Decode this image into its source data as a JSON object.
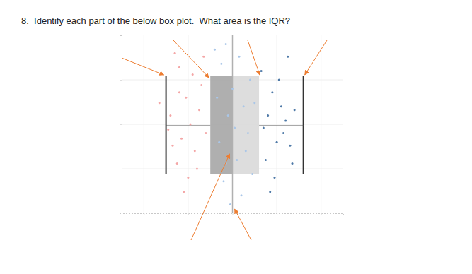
{
  "chart_data": {
    "type": "box",
    "title": "8.  Identify each part of the below box plot.  What area is the IQR?",
    "orientation": "horizontal",
    "tick_labels": false,
    "grid": true,
    "xlim": [
      0,
      100
    ],
    "ylim": [
      0,
      100
    ],
    "xticks": [
      10,
      30,
      50,
      70,
      90
    ],
    "yticks": [
      25,
      50,
      75
    ],
    "box": {
      "min": 20,
      "q1": 40,
      "median": 50,
      "q3": 62,
      "max": 82
    },
    "colors": [
      "#a6a6a6",
      "#d9d9d9"
    ],
    "series": [
      {
        "type": "scatter",
        "color": "#f4a6a6",
        "marker": "circle",
        "x": [
          17,
          24,
          26,
          22,
          29,
          31,
          27,
          33,
          25,
          36,
          30,
          23,
          35,
          38,
          28,
          34,
          21,
          32,
          37,
          26
        ],
        "y": [
          62,
          90,
          82,
          55,
          65,
          50,
          42,
          35,
          28,
          72,
          20,
          38,
          58,
          45,
          12,
          25,
          47,
          78,
          88,
          68
        ]
      },
      {
        "type": "scatter",
        "color": "#a9c6e8",
        "marker": "circle",
        "x": [
          42,
          45,
          47,
          50,
          53,
          55,
          48,
          44,
          52,
          57,
          59,
          46,
          54,
          58,
          43,
          51,
          56,
          49,
          60,
          47
        ],
        "y": [
          92,
          84,
          95,
          70,
          88,
          60,
          55,
          40,
          30,
          45,
          22,
          18,
          10,
          75,
          65,
          48,
          35,
          5,
          62,
          28
        ]
      },
      {
        "type": "scatter",
        "color": "#4e79a7",
        "marker": "circle",
        "x": [
          63,
          66,
          68,
          70,
          72,
          65,
          74,
          71,
          76,
          69,
          78,
          73,
          75,
          67,
          77,
          64
        ],
        "y": [
          80,
          55,
          68,
          40,
          60,
          30,
          52,
          75,
          38,
          20,
          58,
          45,
          88,
          12,
          28,
          48
        ]
      }
    ]
  }
}
